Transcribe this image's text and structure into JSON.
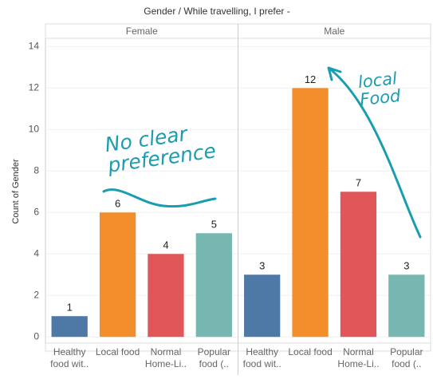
{
  "chart_data": {
    "type": "bar",
    "title": "Gender  /  While travelling, I prefer -",
    "y_label": "Count of Gender",
    "categories": [
      "Healthy food wit..",
      "Local food",
      "Normal Home-Li..",
      "Popular food (.."
    ],
    "colors": [
      "#4e79a7",
      "#f28e2b",
      "#e15759",
      "#76b7b2"
    ],
    "panels": [
      {
        "name": "Female",
        "values": [
          1,
          6,
          4,
          5
        ]
      },
      {
        "name": "Male",
        "values": [
          3,
          12,
          7,
          3
        ]
      }
    ],
    "ylim": [
      -0.3,
      14.4
    ],
    "yticks": [
      0,
      2,
      4,
      6,
      8,
      10,
      12,
      14
    ],
    "grid": true,
    "annotations": [
      "No clear preference",
      "local Food"
    ]
  }
}
